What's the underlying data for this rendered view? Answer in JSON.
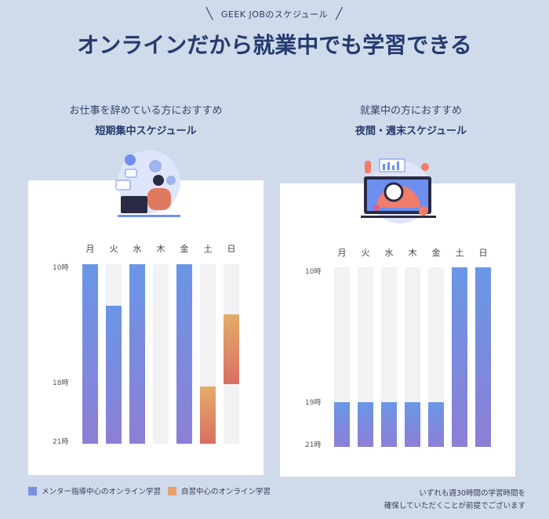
{
  "header": {
    "eyebrow": "GEEK JOBのスケジュール",
    "title": "オンラインだから就業中でも学習できる"
  },
  "columns": [
    {
      "subtitle": "お仕事を辞めている方におすすめ",
      "title": "短期集中スケジュール",
      "days": [
        "月",
        "火",
        "水",
        "木",
        "金",
        "土",
        "日"
      ],
      "time_labels": [
        "10時",
        "18時",
        "21時"
      ]
    },
    {
      "subtitle": "就業中の方におすすめ",
      "title": "夜間・週末スケジュール",
      "days": [
        "月",
        "火",
        "水",
        "木",
        "金",
        "土",
        "日"
      ],
      "time_labels": [
        "10時",
        "19時",
        "21時"
      ]
    }
  ],
  "legend": {
    "mentor": "メンター指導中心のオンライン学習",
    "self": "自習中心のオンライン学習"
  },
  "note": {
    "line1": "いずれも週30時間の学習時間を",
    "line2": "確保していただくことが前提でございます"
  },
  "colors": {
    "background": "#cfdbea",
    "mentor": "#7a8fe2",
    "self": "#e3a06a"
  },
  "icons": {
    "left_illustration": "person-at-laptop-illustration",
    "right_illustration": "analytics-dashboard-illustration"
  }
}
